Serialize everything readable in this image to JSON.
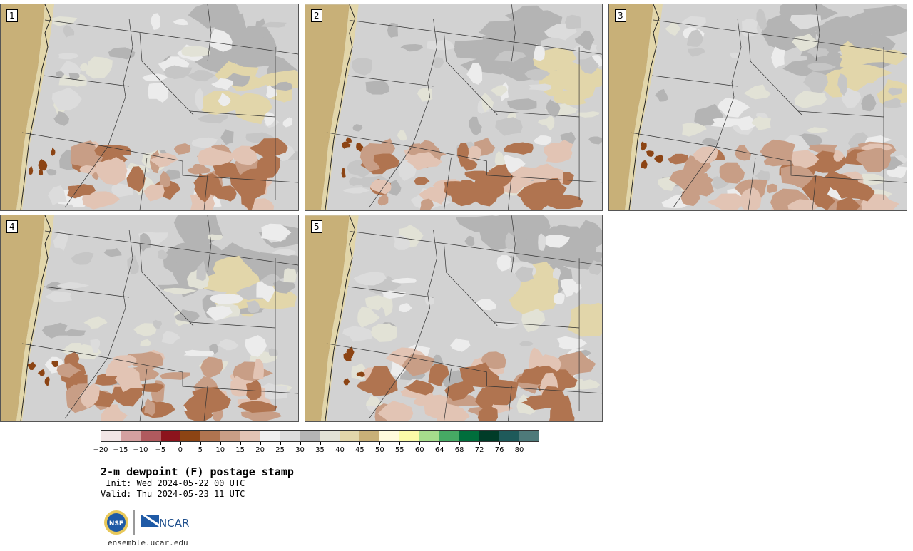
{
  "panels": [
    {
      "label": "1"
    },
    {
      "label": "2"
    },
    {
      "label": "3"
    },
    {
      "label": "4"
    },
    {
      "label": "5"
    }
  ],
  "colorbar": {
    "colors": [
      "#f2e6e6",
      "#d4a0a0",
      "#b05a5e",
      "#8c141c",
      "#8c4414",
      "#b07450",
      "#c89e86",
      "#e2c4b4",
      "#f0f0f0",
      "#dcdcdc",
      "#b4b4b4",
      "#e2e2d6",
      "#e2d6aa",
      "#c8b078",
      "#fffadc",
      "#fafaa8",
      "#a6dc8c",
      "#46aa64",
      "#006e3c",
      "#003c28",
      "#1e5a5a",
      "#4e7a7a"
    ],
    "tick_labels": [
      "−20",
      "−15",
      "−10",
      "−5",
      "0",
      "5",
      "10",
      "15",
      "20",
      "25",
      "30",
      "35",
      "40",
      "45",
      "50",
      "55",
      "60",
      "64",
      "68",
      "72",
      "76",
      "80"
    ]
  },
  "title": "2-m dewpoint (F) postage stamp",
  "init": " Init: Wed 2024-05-22 00 UTC",
  "valid": "Valid: Thu 2024-05-23 11 UTC",
  "logo": {
    "nsf_text": "NSF",
    "ncar_text": "NCAR",
    "url": "ensemble.ucar.edu"
  }
}
